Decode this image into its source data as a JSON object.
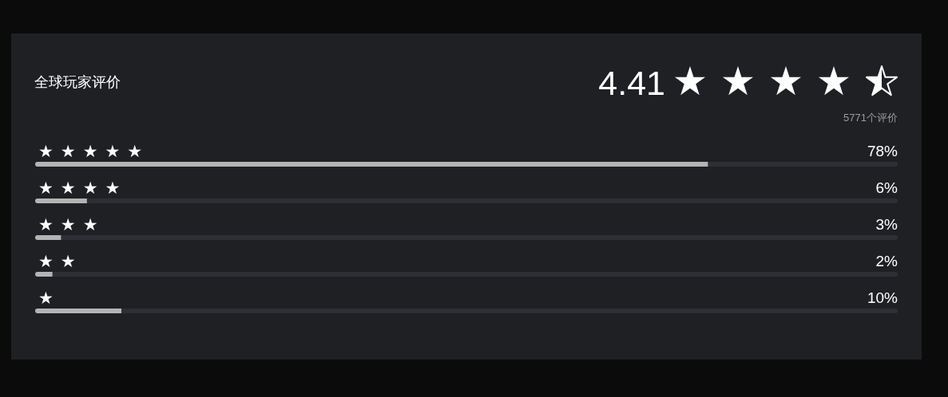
{
  "chart_data": {
    "type": "bar",
    "orientation": "horizontal",
    "title": "全球玩家评价",
    "annotations": [
      "4.41",
      "5771个评价"
    ],
    "categories": [
      "★★★★★",
      "★★★★",
      "★★★",
      "★★",
      "★"
    ],
    "values": [
      78,
      6,
      3,
      2,
      10
    ],
    "value_labels": [
      "78%",
      "6%",
      "3%",
      "2%",
      "10%"
    ],
    "color": "#b4b4b4",
    "xlim": [
      0,
      100
    ],
    "tick_labels": "y"
  }
}
